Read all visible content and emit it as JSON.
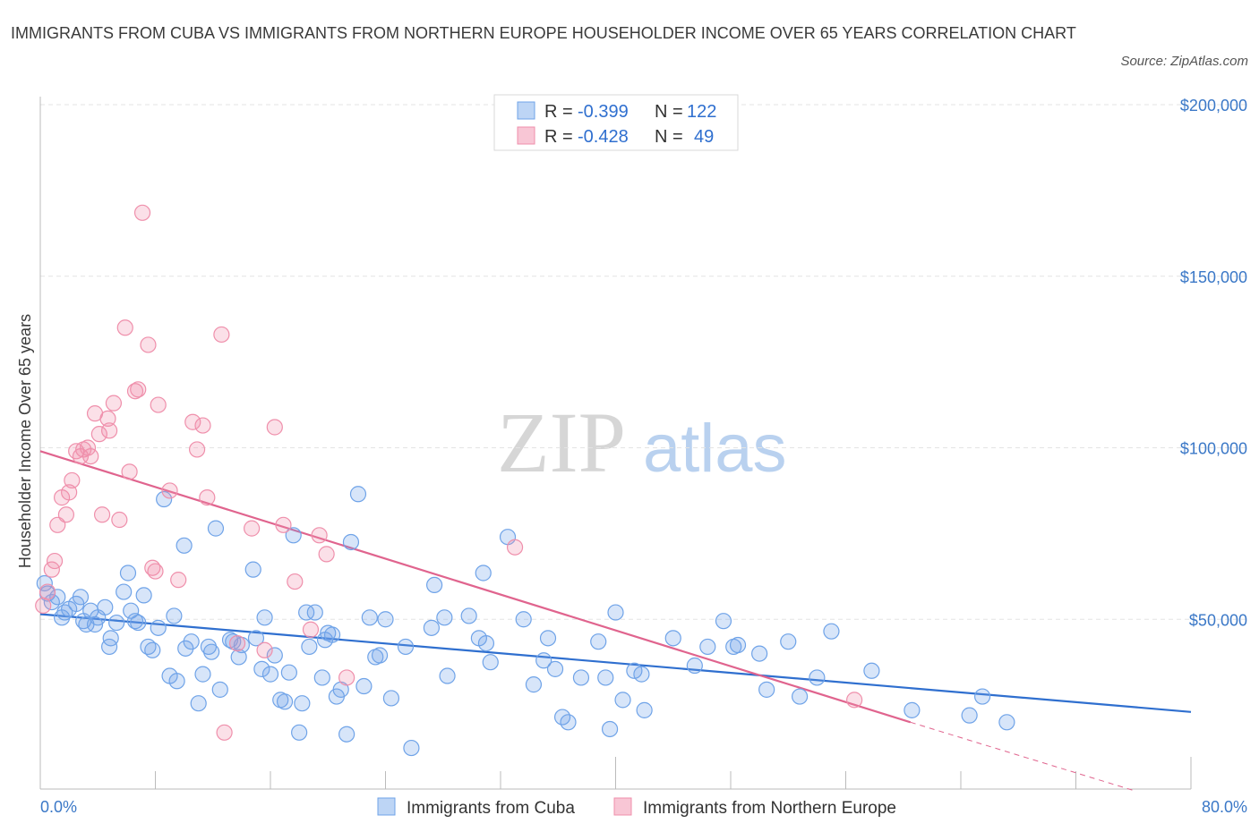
{
  "header": {
    "title": "IMMIGRANTS FROM CUBA VS IMMIGRANTS FROM NORTHERN EUROPE HOUSEHOLDER INCOME OVER 65 YEARS CORRELATION CHART",
    "source": "Source: ZipAtlas.com"
  },
  "watermark": {
    "zip": "ZIP",
    "atlas": "atlas"
  },
  "legend": {
    "r_label": "R =",
    "n_label": "N =",
    "items": [
      {
        "name": "Immigrants from Cuba",
        "r": "-0.399",
        "n": "122",
        "color": "#6fa3e8"
      },
      {
        "name": "Immigrants from Northern Europe",
        "r": "-0.428",
        "n": "49",
        "color": "#ef8fab"
      }
    ]
  },
  "chart_data": {
    "type": "scatter",
    "title": "IMMIGRANTS FROM CUBA VS IMMIGRANTS FROM NORTHERN EUROPE HOUSEHOLDER INCOME OVER 65 YEARS CORRELATION CHART",
    "xlabel": "",
    "ylabel": "Householder Income Over 65 years",
    "xlim": [
      0,
      80
    ],
    "ylim": [
      0,
      200000
    ],
    "x_tick_labels": [
      "0.0%",
      "80.0%"
    ],
    "y_tick_labels": [
      "$50,000",
      "$100,000",
      "$150,000",
      "$200,000"
    ],
    "y_ticks": [
      50000,
      100000,
      150000,
      200000
    ],
    "grid": true,
    "legend_position": "top-center",
    "series": [
      {
        "name": "Immigrants from Cuba",
        "color": "#6fa3e8",
        "trend": {
          "x0": 0,
          "y0": 51500,
          "x1": 80,
          "y1": 23000
        },
        "points": [
          [
            0.3,
            60500
          ],
          [
            0.5,
            57500
          ],
          [
            0.8,
            55000
          ],
          [
            1.2,
            56500
          ],
          [
            1.5,
            50500
          ],
          [
            1.7,
            52000
          ],
          [
            2.0,
            53000
          ],
          [
            2.5,
            54500
          ],
          [
            2.8,
            56500
          ],
          [
            3.0,
            49500
          ],
          [
            3.2,
            48500
          ],
          [
            3.5,
            52500
          ],
          [
            3.8,
            48500
          ],
          [
            4.0,
            50500
          ],
          [
            4.5,
            53500
          ],
          [
            4.8,
            42000
          ],
          [
            4.9,
            44500
          ],
          [
            5.3,
            49000
          ],
          [
            5.8,
            58000
          ],
          [
            6.1,
            63500
          ],
          [
            6.3,
            52500
          ],
          [
            6.6,
            49500
          ],
          [
            6.8,
            49000
          ],
          [
            7.2,
            57000
          ],
          [
            7.5,
            42000
          ],
          [
            7.8,
            41000
          ],
          [
            8.2,
            47500
          ],
          [
            8.6,
            85000
          ],
          [
            9.0,
            33500
          ],
          [
            9.3,
            51000
          ],
          [
            9.5,
            32000
          ],
          [
            10.0,
            71500
          ],
          [
            10.1,
            41500
          ],
          [
            10.5,
            43500
          ],
          [
            11.0,
            25500
          ],
          [
            11.3,
            34000
          ],
          [
            11.7,
            42000
          ],
          [
            11.9,
            40500
          ],
          [
            12.2,
            76500
          ],
          [
            12.5,
            29500
          ],
          [
            13.2,
            44000
          ],
          [
            13.4,
            43500
          ],
          [
            13.8,
            39000
          ],
          [
            14.0,
            42500
          ],
          [
            14.8,
            64500
          ],
          [
            15.0,
            44500
          ],
          [
            15.4,
            35500
          ],
          [
            15.6,
            50500
          ],
          [
            16.0,
            34000
          ],
          [
            16.3,
            39500
          ],
          [
            16.7,
            26500
          ],
          [
            17.0,
            26000
          ],
          [
            17.3,
            34500
          ],
          [
            17.6,
            74500
          ],
          [
            18.0,
            17000
          ],
          [
            18.2,
            25500
          ],
          [
            18.5,
            52000
          ],
          [
            18.7,
            42000
          ],
          [
            19.1,
            52000
          ],
          [
            19.6,
            33000
          ],
          [
            19.8,
            44000
          ],
          [
            20.0,
            46000
          ],
          [
            20.3,
            45500
          ],
          [
            20.6,
            27500
          ],
          [
            20.9,
            29500
          ],
          [
            21.3,
            16500
          ],
          [
            21.6,
            72500
          ],
          [
            22.1,
            86500
          ],
          [
            22.5,
            30500
          ],
          [
            22.9,
            50500
          ],
          [
            23.3,
            39000
          ],
          [
            23.6,
            39500
          ],
          [
            24.0,
            50000
          ],
          [
            24.4,
            27000
          ],
          [
            25.4,
            42000
          ],
          [
            25.8,
            12500
          ],
          [
            27.4,
            60000
          ],
          [
            27.2,
            47500
          ],
          [
            28.1,
            50500
          ],
          [
            28.3,
            33500
          ],
          [
            29.8,
            51000
          ],
          [
            30.5,
            44500
          ],
          [
            30.8,
            63500
          ],
          [
            31.0,
            43000
          ],
          [
            31.3,
            37500
          ],
          [
            32.5,
            74000
          ],
          [
            33.6,
            50000
          ],
          [
            34.3,
            31000
          ],
          [
            35.0,
            38000
          ],
          [
            35.3,
            44500
          ],
          [
            35.8,
            35500
          ],
          [
            36.3,
            21500
          ],
          [
            36.7,
            20000
          ],
          [
            37.6,
            33000
          ],
          [
            38.8,
            43500
          ],
          [
            39.3,
            33000
          ],
          [
            39.6,
            18000
          ],
          [
            40.0,
            52000
          ],
          [
            40.5,
            26500
          ],
          [
            41.3,
            35000
          ],
          [
            41.8,
            34000
          ],
          [
            42.0,
            23500
          ],
          [
            44.0,
            44500
          ],
          [
            45.5,
            36500
          ],
          [
            46.4,
            42000
          ],
          [
            47.5,
            49500
          ],
          [
            48.2,
            42000
          ],
          [
            48.5,
            42500
          ],
          [
            50.0,
            40000
          ],
          [
            50.5,
            29500
          ],
          [
            52.0,
            43500
          ],
          [
            52.8,
            27500
          ],
          [
            54.0,
            33000
          ],
          [
            55.0,
            46500
          ],
          [
            57.8,
            35000
          ],
          [
            60.6,
            23500
          ],
          [
            64.6,
            22000
          ],
          [
            65.5,
            27500
          ],
          [
            67.2,
            20000
          ]
        ]
      },
      {
        "name": "Immigrants from Northern Europe",
        "color": "#ef8fab",
        "trend": {
          "x0": 0,
          "y0": 99000,
          "x1": 60.5,
          "y1": 20000,
          "dashed_to_x": 80,
          "dashed_to_y": -5000
        },
        "points": [
          [
            0.2,
            54000
          ],
          [
            0.5,
            58000
          ],
          [
            0.8,
            64500
          ],
          [
            1.0,
            67000
          ],
          [
            1.2,
            77500
          ],
          [
            1.5,
            85500
          ],
          [
            1.8,
            80500
          ],
          [
            2.0,
            87000
          ],
          [
            2.2,
            90500
          ],
          [
            2.5,
            99000
          ],
          [
            2.8,
            97500
          ],
          [
            3.0,
            99500
          ],
          [
            3.3,
            100000
          ],
          [
            3.5,
            97500
          ],
          [
            3.8,
            110000
          ],
          [
            4.1,
            104000
          ],
          [
            4.3,
            80500
          ],
          [
            4.7,
            108500
          ],
          [
            4.8,
            105000
          ],
          [
            5.1,
            113000
          ],
          [
            5.5,
            79000
          ],
          [
            5.9,
            135000
          ],
          [
            6.2,
            93000
          ],
          [
            6.6,
            116500
          ],
          [
            6.8,
            117000
          ],
          [
            7.1,
            168500
          ],
          [
            7.5,
            130000
          ],
          [
            7.8,
            65000
          ],
          [
            8.0,
            64000
          ],
          [
            8.2,
            112500
          ],
          [
            9.0,
            87500
          ],
          [
            9.6,
            61500
          ],
          [
            10.6,
            107500
          ],
          [
            10.9,
            99500
          ],
          [
            11.3,
            106500
          ],
          [
            11.6,
            85500
          ],
          [
            12.6,
            133000
          ],
          [
            12.8,
            17000
          ],
          [
            13.7,
            43000
          ],
          [
            14.7,
            76500
          ],
          [
            15.6,
            41000
          ],
          [
            16.3,
            106000
          ],
          [
            16.9,
            77500
          ],
          [
            17.7,
            61000
          ],
          [
            18.8,
            47000
          ],
          [
            19.4,
            74500
          ],
          [
            19.9,
            69000
          ],
          [
            21.3,
            33000
          ],
          [
            33.0,
            71000
          ],
          [
            56.6,
            26500
          ]
        ]
      }
    ]
  }
}
